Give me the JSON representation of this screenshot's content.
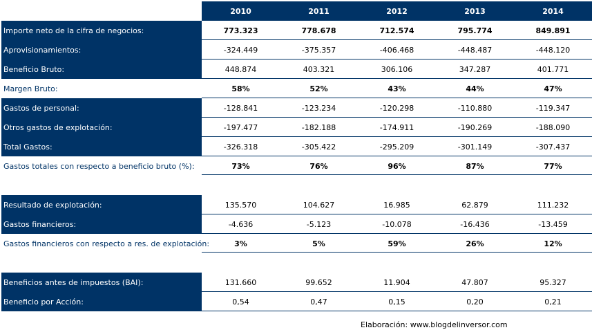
{
  "years": [
    "2010",
    "2011",
    "2012",
    "2013",
    "2014"
  ],
  "rows": [
    {
      "label": "Importe neto de la cifra de negocios:",
      "values": [
        "773.323",
        "778.678",
        "712.574",
        "795.774",
        "849.891"
      ]
    },
    {
      "label": "Aprovisionamientos:",
      "values": [
        "-324.449",
        "-375.357",
        "-406.468",
        "-448.487",
        "-448.120"
      ]
    },
    {
      "label": "Beneficio Bruto:",
      "values": [
        "448.874",
        "403.321",
        "306.106",
        "347.287",
        "401.771"
      ]
    },
    {
      "label": "Margen Bruto:",
      "values": [
        "58%",
        "52%",
        "43%",
        "44%",
        "47%"
      ]
    },
    {
      "label": "Gastos de personal:",
      "values": [
        "-128.841",
        "-123.234",
        "-120.298",
        "-110.880",
        "-119.347"
      ]
    },
    {
      "label": "Otros gastos de explotación:",
      "values": [
        "-197.477",
        "-182.188",
        "-174.911",
        "-190.269",
        "-188.090"
      ]
    },
    {
      "label": "Total Gastos:",
      "values": [
        "-326.318",
        "-305.422",
        "-295.209",
        "-301.149",
        "-307.437"
      ]
    },
    {
      "label": "Gastos totales con respecto a beneficio bruto (%):",
      "values": [
        "73%",
        "76%",
        "96%",
        "87%",
        "77%"
      ]
    },
    {
      "label": "Resultado de explotación:",
      "values": [
        "135.570",
        "104.627",
        "16.985",
        "62.879",
        "111.232"
      ]
    },
    {
      "label": "Gastos financieros:",
      "values": [
        "-4.636",
        "-5.123",
        "-10.078",
        "-16.436",
        "-13.459"
      ]
    },
    {
      "label": "Gastos financieros con respecto a res. de explotación:",
      "values": [
        "3%",
        "5%",
        "59%",
        "26%",
        "12%"
      ]
    },
    {
      "label": "Beneficios antes de impuestos (BAI):",
      "values": [
        "131.660",
        "99.652",
        "11.904",
        "47.807",
        "95.327"
      ]
    },
    {
      "label": "Beneficio por Acción:",
      "values": [
        "0,54",
        "0,47",
        "0,15",
        "0,20",
        "0,21"
      ]
    }
  ],
  "footer": "Elaboración: www.blogdelinversor.com"
}
